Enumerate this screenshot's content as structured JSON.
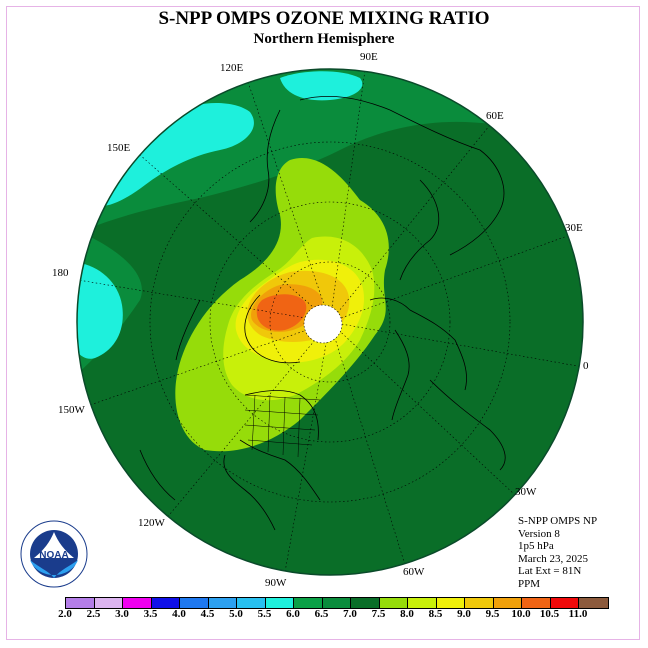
{
  "title": "S-NPP OMPS OZONE MIXING RATIO",
  "subtitle": "Northern Hemisphere",
  "longitude_labels": {
    "e120": "120E",
    "e90": "90E",
    "e60": "60E",
    "e150": "150E",
    "e30": "30E",
    "d180": "180",
    "d0": "0",
    "w150": "150W",
    "w30": "30W",
    "w120": "120W",
    "w60": "60W",
    "w90": "90W"
  },
  "info": {
    "line1": "S-NPP OMPS NP",
    "line2": "Version 8",
    "line3": "1p5 hPa",
    "line4": "March 23, 2025",
    "line5": "Lat Ext = 81N",
    "line6": "PPM"
  },
  "logo": {
    "text": "NOAA",
    "icon": "noaa-logo-icon"
  },
  "colorbar": {
    "ticks": [
      "2.0",
      "2.5",
      "3.0",
      "3.5",
      "4.0",
      "4.5",
      "5.0",
      "5.5",
      "6.0",
      "6.5",
      "7.0",
      "7.5",
      "8.0",
      "8.5",
      "9.0",
      "9.5",
      "10.0",
      "10.5",
      "11.0"
    ],
    "colors": [
      "#b47ee8",
      "#dcb4f0",
      "#f000f0",
      "#1010e8",
      "#1e78f0",
      "#2ca0f0",
      "#28c0f0",
      "#1ef0dc",
      "#0aa046",
      "#0a8c3c",
      "#0a6e28",
      "#96dc0a",
      "#c8f00a",
      "#f0f00a",
      "#f0c80a",
      "#f0a00a",
      "#f06414",
      "#f00a0a",
      "#8c5a3c"
    ]
  },
  "map_data": {
    "projection": "north-polar-stereographic",
    "quantity": "ozone mixing ratio",
    "units": "PPM",
    "pressure_level": "1p5 hPa",
    "date": "March 23, 2025",
    "lat_extent": "81N",
    "value_range_ppm": [
      5.5,
      10.0
    ],
    "max_region": "9.5-10.0 ppm over the Arctic near 150E-180",
    "min_region": "5.5-6.0 ppm patches near 120E-150E and 180"
  }
}
